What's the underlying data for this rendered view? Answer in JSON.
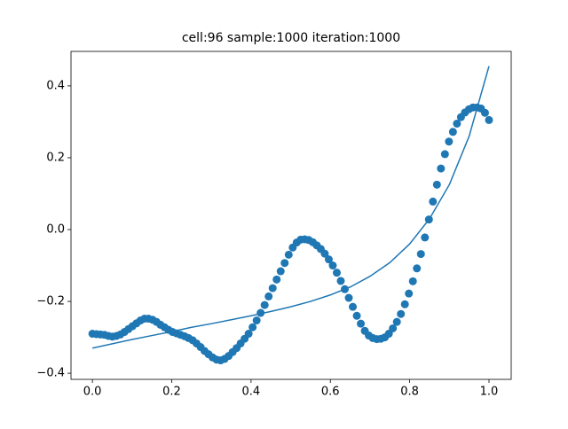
{
  "chart_data": {
    "type": "scatter",
    "title": "cell:96 sample:1000 iteration:1000",
    "xlim": [
      -0.054,
      1.056
    ],
    "ylim": [
      -0.417,
      0.496
    ],
    "xticks": [
      {
        "value": 0,
        "label": "0.0"
      },
      {
        "value": 0.2,
        "label": "0.2"
      },
      {
        "value": 0.4,
        "label": "0.4"
      },
      {
        "value": 0.6,
        "label": "0.6"
      },
      {
        "value": 0.8,
        "label": "0.8"
      },
      {
        "value": 1,
        "label": "1.0"
      }
    ],
    "yticks": [
      {
        "value": -0.4,
        "label": "−0.4"
      },
      {
        "value": -0.2,
        "label": "−0.2"
      },
      {
        "value": 0,
        "label": "0.0"
      },
      {
        "value": 0.2,
        "label": "0.2"
      },
      {
        "value": 0.4,
        "label": "0.4"
      }
    ],
    "series": [
      {
        "type": "scatter",
        "color": "#1f77b4",
        "x": [
          0,
          0.0101,
          0.0202,
          0.0303,
          0.0404,
          0.0505,
          0.0606,
          0.0707,
          0.0808,
          0.0909,
          0.101,
          0.1111,
          0.1212,
          0.1313,
          0.1414,
          0.1515,
          0.1616,
          0.1717,
          0.1818,
          0.1919,
          0.202,
          0.2121,
          0.2222,
          0.2323,
          0.2424,
          0.2525,
          0.2626,
          0.2727,
          0.2828,
          0.2929,
          0.303,
          0.3131,
          0.3232,
          0.3333,
          0.3434,
          0.3535,
          0.3636,
          0.3737,
          0.3838,
          0.3939,
          0.404,
          0.4141,
          0.4242,
          0.4343,
          0.4444,
          0.4545,
          0.4646,
          0.4747,
          0.4848,
          0.4949,
          0.5051,
          0.5152,
          0.5253,
          0.5354,
          0.5455,
          0.5556,
          0.5657,
          0.5758,
          0.5859,
          0.596,
          0.6061,
          0.6162,
          0.6263,
          0.6364,
          0.6465,
          0.6566,
          0.6667,
          0.6768,
          0.6869,
          0.697,
          0.7071,
          0.7172,
          0.7273,
          0.7374,
          0.7475,
          0.7576,
          0.7677,
          0.7778,
          0.7879,
          0.798,
          0.8081,
          0.8182,
          0.8283,
          0.8384,
          0.8485,
          0.8586,
          0.8687,
          0.8788,
          0.8889,
          0.899,
          0.9091,
          0.9192,
          0.9293,
          0.9394,
          0.9495,
          0.9596,
          0.9697,
          0.9798,
          0.9899,
          1
        ],
        "values": [
          -0.29,
          -0.291,
          -0.292,
          -0.293,
          -0.296,
          -0.298,
          -0.296,
          -0.292,
          -0.285,
          -0.277,
          -0.269,
          -0.261,
          -0.253,
          -0.248,
          -0.248,
          -0.251,
          -0.257,
          -0.265,
          -0.272,
          -0.279,
          -0.285,
          -0.289,
          -0.293,
          -0.297,
          -0.302,
          -0.308,
          -0.317,
          -0.327,
          -0.338,
          -0.347,
          -0.356,
          -0.362,
          -0.364,
          -0.36,
          -0.352,
          -0.341,
          -0.33,
          -0.317,
          -0.304,
          -0.29,
          -0.272,
          -0.253,
          -0.232,
          -0.21,
          -0.186,
          -0.163,
          -0.139,
          -0.116,
          -0.093,
          -0.07,
          -0.05,
          -0.036,
          -0.028,
          -0.027,
          -0.029,
          -0.035,
          -0.044,
          -0.054,
          -0.067,
          -0.083,
          -0.1,
          -0.12,
          -0.143,
          -0.166,
          -0.19,
          -0.215,
          -0.24,
          -0.262,
          -0.282,
          -0.295,
          -0.302,
          -0.305,
          -0.304,
          -0.3,
          -0.29,
          -0.275,
          -0.257,
          -0.235,
          -0.208,
          -0.178,
          -0.144,
          -0.108,
          -0.068,
          -0.022,
          0.028,
          0.078,
          0.125,
          0.17,
          0.21,
          0.245,
          0.272,
          0.295,
          0.313,
          0.326,
          0.335,
          0.34,
          0.34,
          0.337,
          0.325,
          0.305
        ]
      },
      {
        "type": "line",
        "color": "#1f77b4",
        "x": [
          0,
          0.05,
          0.1,
          0.15,
          0.2,
          0.25,
          0.3,
          0.35,
          0.4,
          0.45,
          0.5,
          0.55,
          0.6,
          0.65,
          0.7,
          0.75,
          0.8,
          0.85,
          0.9,
          0.95,
          1
        ],
        "values": [
          -0.33,
          -0.318,
          -0.306,
          -0.295,
          -0.284,
          -0.272,
          -0.262,
          -0.251,
          -0.24,
          -0.228,
          -0.215,
          -0.2,
          -0.182,
          -0.16,
          -0.13,
          -0.092,
          -0.04,
          0.03,
          0.125,
          0.26,
          0.455
        ]
      }
    ]
  }
}
